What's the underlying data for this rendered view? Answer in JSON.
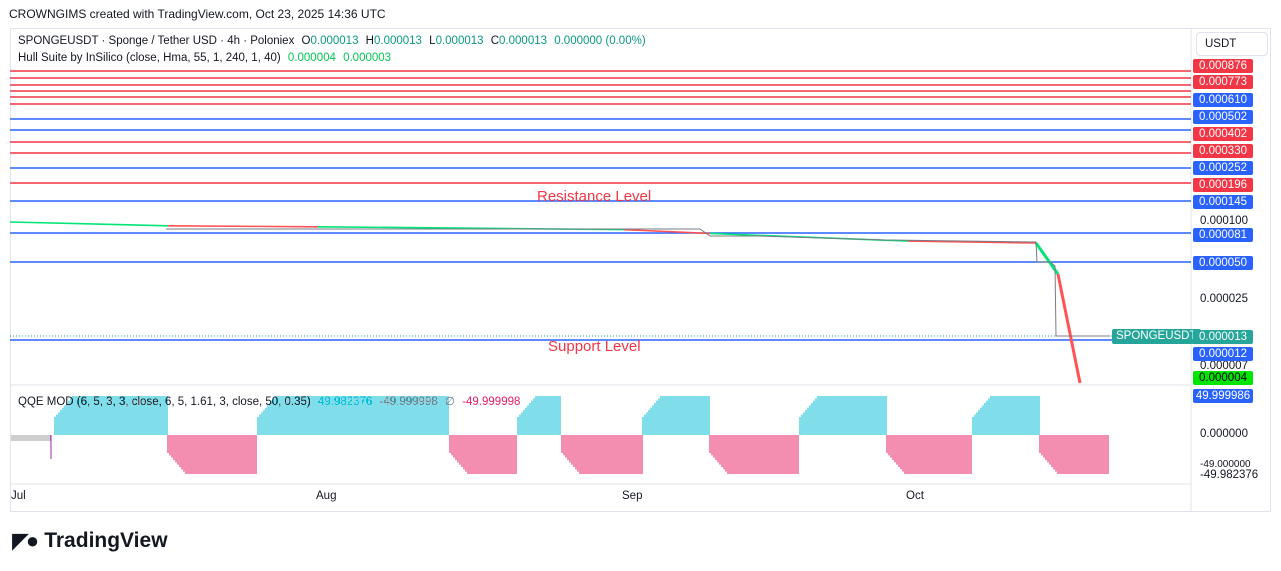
{
  "caption": "CROWNGIMS created with TradingView.com, Oct 23, 2025 14:36 UTC",
  "header": {
    "symbol_line": "SPONGEUSDT · Sponge / Tether USD · 4h · Poloniex",
    "o_label": "O",
    "o_val": "0.000013",
    "h_label": "H",
    "h_val": "0.000013",
    "l_label": "L",
    "l_val": "0.000013",
    "c_label": "C",
    "c_val": "0.000013",
    "change": "0.000000 (0.00%)",
    "indicator_name": "Hull Suite by InSilico (close, Hma, 55, 1, 240, 1, 40)",
    "ind_val1": "0.000004",
    "ind_val2": "0.000003",
    "qqe_name": "QQE MOD (6, 5, 3, 3, close, 6, 5, 1.61, 3, close, 50, 0.35)",
    "qqe_val1": "49.982376",
    "qqe_val2": "-49.999998",
    "qqe_sym": "∅",
    "qqe_val3": "-49.999998"
  },
  "currency": "USDT",
  "annotations": {
    "resistance": "Resistance Level",
    "support": "Support Level",
    "symbol_tag": "SPONGEUSDT"
  },
  "axis": {
    "price_ticks": [
      "0.000100",
      "0.000025",
      "0.000007"
    ],
    "qqe_ticks": [
      "0.000000",
      "-49.000000",
      "-49.982376"
    ],
    "x_ticks": [
      "Jul",
      "Aug",
      "Sep",
      "Oct"
    ]
  },
  "price_labels": [
    {
      "value": "0.000876",
      "color": "#f23645"
    },
    {
      "value": "0.000773",
      "color": "#f23645"
    },
    {
      "value": "0.000610",
      "color": "#2962ff"
    },
    {
      "value": "0.000502",
      "color": "#2962ff"
    },
    {
      "value": "0.000402",
      "color": "#f23645"
    },
    {
      "value": "0.000330",
      "color": "#f23645"
    },
    {
      "value": "0.000252",
      "color": "#2962ff"
    },
    {
      "value": "0.000196",
      "color": "#f23645"
    },
    {
      "value": "0.000145",
      "color": "#2962ff"
    },
    {
      "value": "0.000081",
      "color": "#2962ff"
    },
    {
      "value": "0.000050",
      "color": "#2962ff"
    },
    {
      "value": "0.000013",
      "color": "#26a69a"
    },
    {
      "value": "0.000012",
      "color": "#2962ff"
    },
    {
      "value": "0.000004",
      "color": "#00e600"
    },
    {
      "value": "49.999986",
      "color": "#2962ff"
    }
  ],
  "brand": "TradingView",
  "colors": {
    "bull": "#00bcd4",
    "bear": "#e91e63",
    "hull_up": "#00e676",
    "hull_down": "#ff5252",
    "resistance_line": "#f23645",
    "support_line": "#2962ff"
  },
  "chart_data": {
    "type": "line",
    "title": "",
    "x_range": [
      "Jul",
      "Oct 23"
    ],
    "price_levels_red": [
      0.000876,
      0.000773,
      0.00069,
      0.00064,
      0.000402,
      0.00033,
      0.000196
    ],
    "price_levels_blue": [
      0.00061,
      0.000502,
      0.000252,
      0.000145,
      8.1e-05,
      5e-05,
      1.2e-05
    ],
    "hull_series": {
      "name": "Hull Suite",
      "x": [
        "Jul 1",
        "Jul 18",
        "Aug 1",
        "Sep 1",
        "Sep 10",
        "Oct 1",
        "Oct 13",
        "Oct 16",
        "Oct 23"
      ],
      "values": [
        9.8e-05,
        9.4e-05,
        9.3e-05,
        9e-05,
        8.6e-05,
        7.8e-05,
        7.6e-05,
        6e-05,
        4e-06
      ]
    },
    "price_series": {
      "name": "SPONGEUSDT",
      "last": 1.3e-05
    },
    "qqe": {
      "range": [
        -50,
        50
      ],
      "last": 49.999986,
      "phases": [
        "bull",
        "bear",
        "bull",
        "bear",
        "bull",
        "bear",
        "bull",
        "bear",
        "bull",
        "bear"
      ]
    }
  }
}
